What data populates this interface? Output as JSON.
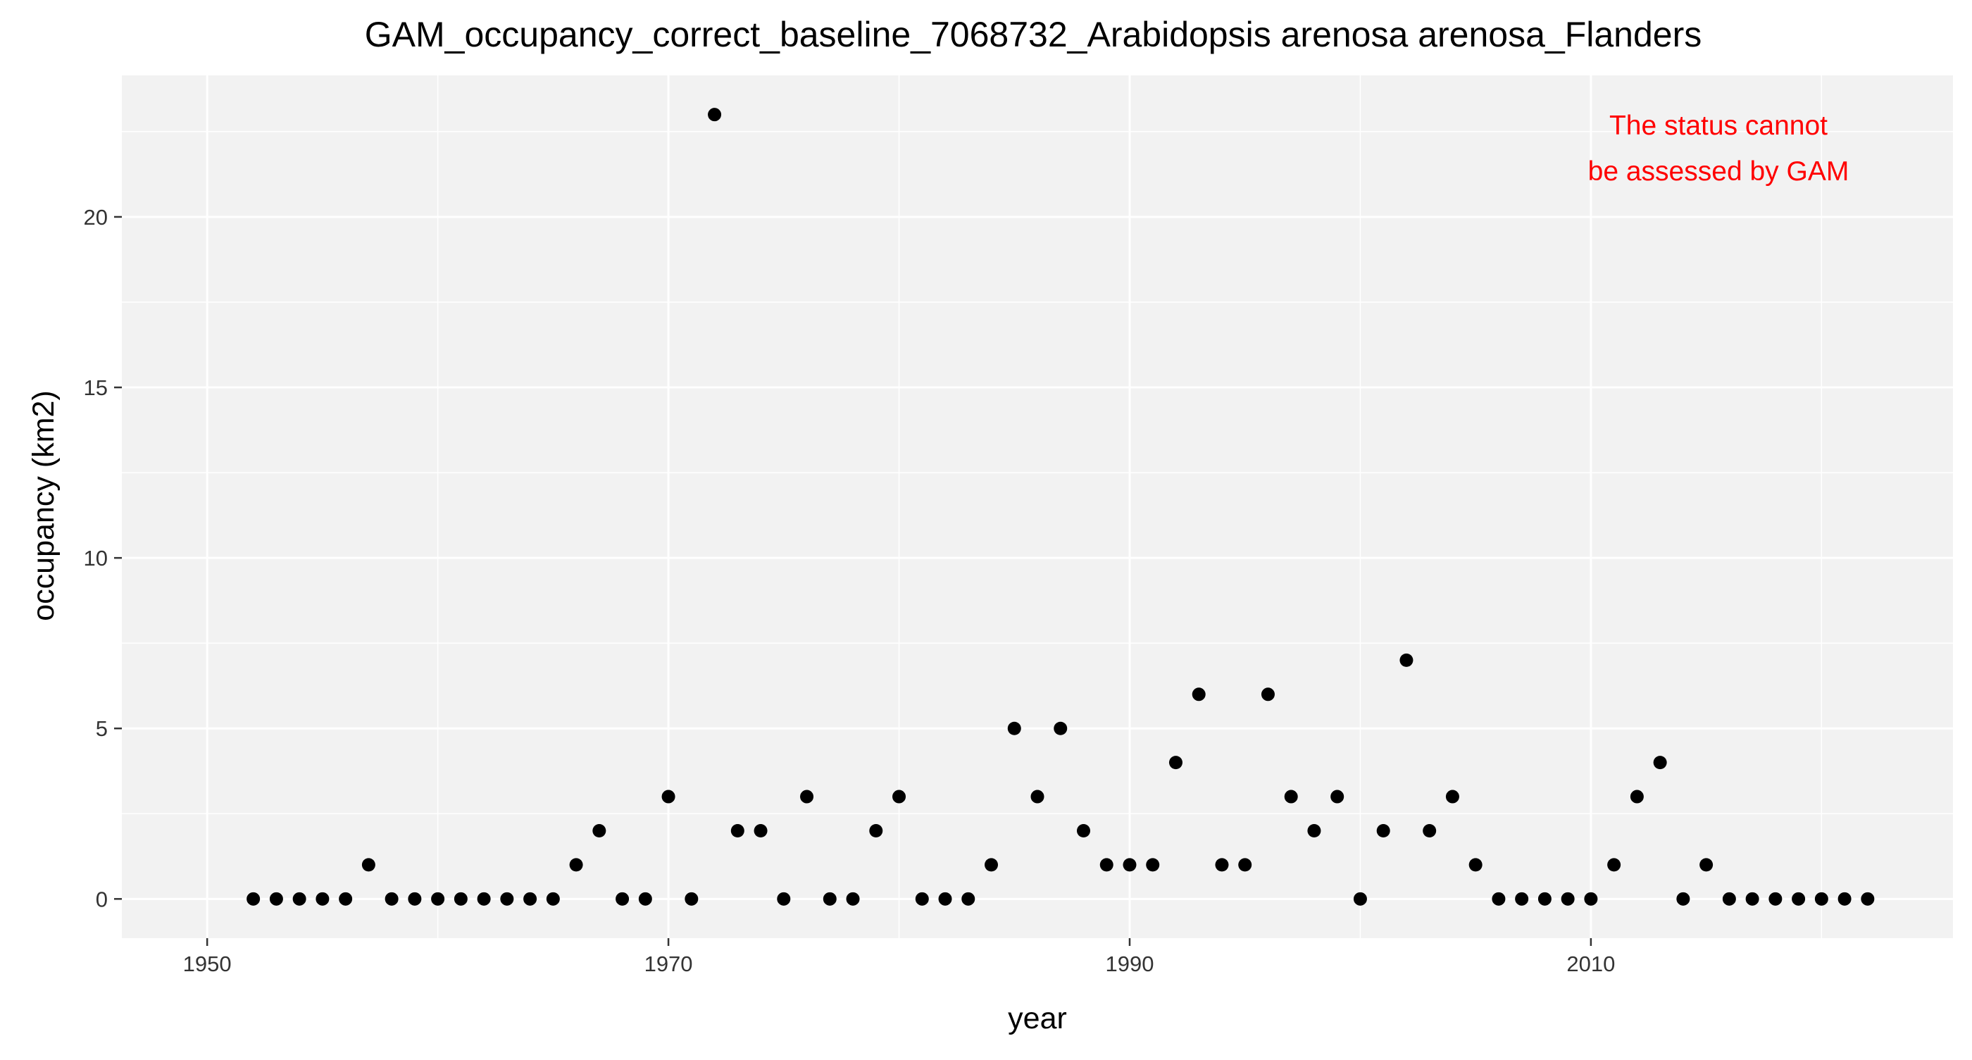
{
  "chart_data": {
    "type": "scatter",
    "title": "GAM_occupancy_correct_baseline_7068732_Arabidopsis arenosa arenosa_Flanders",
    "xlabel": "year",
    "ylabel": "occupancy (km2)",
    "xlim": [
      1946.3,
      2025.7
    ],
    "ylim": [
      -1.15,
      24.15
    ],
    "x_ticks": [
      1950,
      1970,
      1990,
      2010
    ],
    "x_minor_ticks": [
      1960,
      1980,
      2000,
      2020
    ],
    "y_ticks": [
      0,
      5,
      10,
      15,
      20
    ],
    "y_minor_ticks": [
      2.5,
      7.5,
      12.5,
      17.5,
      22.5
    ],
    "grid": true,
    "legend": "none",
    "annotation": {
      "lines": [
        "The status cannot",
        "be assessed by GAM"
      ],
      "color": "#ff0000"
    },
    "colors": {
      "panel_background": "#f2f2f2",
      "grid": "#ffffff",
      "point": "#000000",
      "text": "#000000",
      "axis_text": "#333333"
    },
    "x": [
      1952,
      1953,
      1954,
      1955,
      1956,
      1957,
      1958,
      1959,
      1960,
      1961,
      1962,
      1963,
      1964,
      1965,
      1966,
      1967,
      1968,
      1969,
      1970,
      1971,
      1972,
      1973,
      1974,
      1975,
      1976,
      1977,
      1978,
      1979,
      1980,
      1981,
      1982,
      1983,
      1984,
      1985,
      1986,
      1987,
      1988,
      1989,
      1990,
      1991,
      1992,
      1993,
      1994,
      1995,
      1996,
      1997,
      1998,
      1999,
      2000,
      2001,
      2002,
      2003,
      2004,
      2005,
      2006,
      2007,
      2008,
      2009,
      2010,
      2011,
      2012,
      2013,
      2014,
      2015,
      2016,
      2017,
      2018,
      2019,
      2020,
      2021,
      2022
    ],
    "y": [
      0,
      0,
      0,
      0,
      0,
      1,
      0,
      0,
      0,
      0,
      0,
      0,
      0,
      0,
      1,
      2,
      0,
      0,
      3,
      0,
      23,
      2,
      2,
      0,
      3,
      0,
      0,
      2,
      3,
      0,
      0,
      0,
      1,
      5,
      3,
      5,
      2,
      1,
      1,
      1,
      4,
      6,
      1,
      1,
      6,
      3,
      2,
      3,
      0,
      2,
      7,
      2,
      3,
      1,
      0,
      0,
      0,
      0,
      0,
      1,
      3,
      4,
      0,
      1,
      0,
      0,
      0,
      0,
      0,
      0,
      0
    ]
  }
}
